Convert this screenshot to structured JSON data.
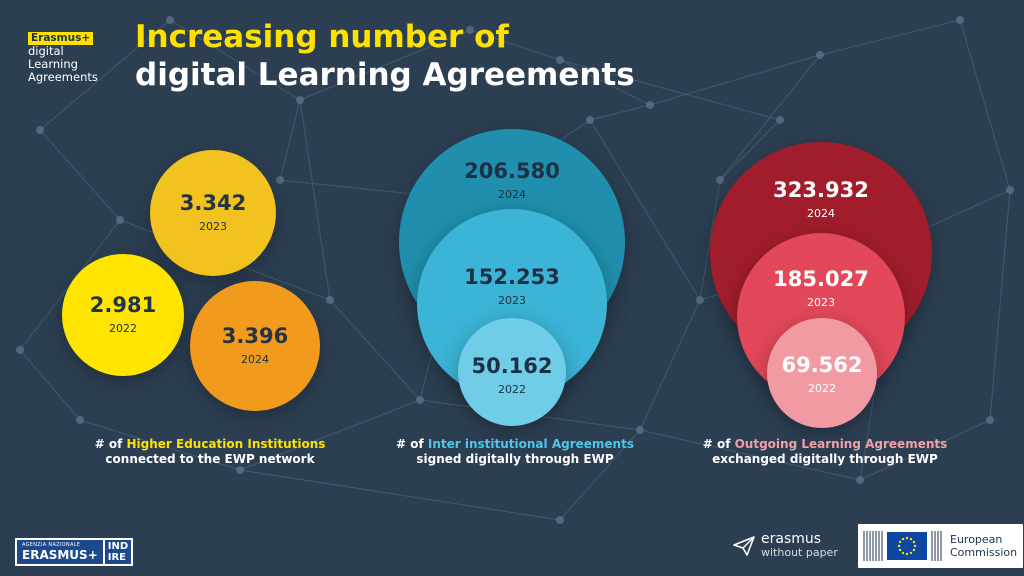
{
  "header": {
    "badge_tag": "Erasmus+",
    "badge_lines": [
      "digital",
      "Learning",
      "Agreements"
    ],
    "title_line1": "Increasing number of",
    "title_line2": "digital Learning Agreements"
  },
  "groups": {
    "hei": {
      "y2023": {
        "value": "3.342",
        "year": "2023"
      },
      "y2022": {
        "value": "2.981",
        "year": "2022"
      },
      "y2024": {
        "value": "3.396",
        "year": "2024"
      },
      "caption": {
        "prefix": "# of ",
        "highlight": "Higher Education Institutions",
        "suffix": " connected to the EWP network"
      }
    },
    "iia": {
      "y2024": {
        "value": "206.580",
        "year": "2024"
      },
      "y2023": {
        "value": "152.253",
        "year": "2023"
      },
      "y2022": {
        "value": "50.162",
        "year": "2022"
      },
      "caption": {
        "prefix": "# of ",
        "highlight": "Inter institutional Agreements",
        "suffix": " signed digitally through EWP"
      }
    },
    "ola": {
      "y2024": {
        "value": "323.932",
        "year": "2024"
      },
      "y2023": {
        "value": "185.027",
        "year": "2023"
      },
      "y2022": {
        "value": "69.562",
        "year": "2022"
      },
      "caption": {
        "prefix": "# of ",
        "highlight": "Outgoing Learning Agreements",
        "suffix": " exchanged digitally through EWP"
      }
    }
  },
  "footer": {
    "agency_small": "AGENZIA NAZIONALE",
    "agency_name": "ERASMUS+",
    "indire_top": "IND",
    "indire_bottom": "IRE",
    "ewp_name": "erasmus",
    "ewp_tagline": "without paper",
    "ec_line1": "European",
    "ec_line2": "Commission"
  },
  "colors": {
    "background": "#2c3f52",
    "accent_yellow": "#ffe100",
    "hei_2022": "#ffe500",
    "hei_2023": "#f2c21e",
    "hei_2024": "#f29a1c",
    "iia_2024": "#1f8fad",
    "iia_2023": "#3bb4d6",
    "iia_2022": "#6fcde8",
    "ola_2024": "#a11d2b",
    "ola_2023": "#e2485a",
    "ola_2022": "#f19aa2"
  }
}
